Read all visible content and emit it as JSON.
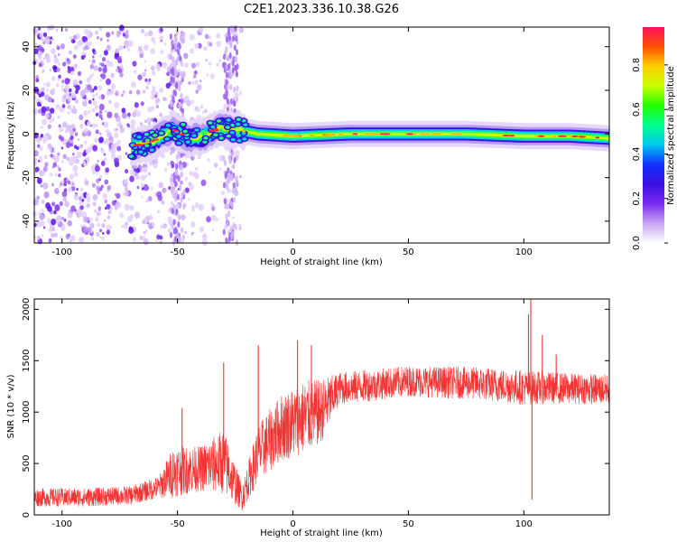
{
  "title": "C2E1.2023.336.10.38.G26",
  "chart_data": [
    {
      "type": "heatmap",
      "title": "C2E1.2023.336.10.38.G26",
      "xlabel": "Height of straight line (km)",
      "ylabel": "Frequency (Hz)",
      "xlim": [
        -112,
        137
      ],
      "ylim": [
        -50,
        49
      ],
      "x_ticks": [
        "-100",
        "-50",
        "0",
        "50",
        "100"
      ],
      "x_tick_values": [
        -100,
        -50,
        0,
        50,
        100
      ],
      "y_ticks": [
        "-40",
        "-20",
        "0",
        "20",
        "40"
      ],
      "y_tick_values": [
        -40,
        -20,
        0,
        20,
        40
      ],
      "colorbar": {
        "label": "Normalized spectral amplitude",
        "range": [
          0,
          0.97
        ],
        "ticks": [
          "0.0",
          "0.2",
          "0.4",
          "0.6",
          "0.8"
        ],
        "tick_values": [
          0.0,
          0.2,
          0.4,
          0.6,
          0.8
        ],
        "colors": [
          "#ffffff",
          "#c9a6f4",
          "#7a2cf0",
          "#3a10e0",
          "#1030ff",
          "#00c8f0",
          "#00ff90",
          "#20ff00",
          "#c8ff00",
          "#ffd000",
          "#ff5000",
          "#ff1060"
        ]
      },
      "signal_track": [
        {
          "x": -70,
          "y": -6
        },
        {
          "x": -60,
          "y": -3
        },
        {
          "x": -52,
          "y": 2
        },
        {
          "x": -45,
          "y": -2
        },
        {
          "x": -38,
          "y": -1
        },
        {
          "x": -32,
          "y": 3
        },
        {
          "x": -25,
          "y": 2
        },
        {
          "x": -15,
          "y": 0
        },
        {
          "x": 0,
          "y": -1
        },
        {
          "x": 25,
          "y": 0
        },
        {
          "x": 50,
          "y": 0
        },
        {
          "x": 75,
          "y": 0
        },
        {
          "x": 100,
          "y": -1
        },
        {
          "x": 120,
          "y": -1
        },
        {
          "x": 137,
          "y": -2
        }
      ],
      "noise_region_x": [
        -112,
        -22
      ]
    },
    {
      "type": "line",
      "xlabel": "Height of straight line (km)",
      "ylabel": "SNR (10 * v/v)",
      "xlim": [
        -112,
        137
      ],
      "ylim": [
        0,
        2100
      ],
      "x_ticks": [
        "-100",
        "-50",
        "0",
        "50",
        "100"
      ],
      "x_tick_values": [
        -100,
        -50,
        0,
        50,
        100
      ],
      "y_ticks": [
        "0",
        "500",
        "1000",
        "1500",
        "2000"
      ],
      "y_tick_values": [
        0,
        500,
        1000,
        1500,
        2000
      ],
      "color": "#f03434",
      "envelope": [
        {
          "x": -112,
          "mean": 170,
          "spread": 90
        },
        {
          "x": -90,
          "mean": 170,
          "spread": 90
        },
        {
          "x": -70,
          "mean": 190,
          "spread": 90
        },
        {
          "x": -58,
          "mean": 270,
          "spread": 110
        },
        {
          "x": -52,
          "mean": 420,
          "spread": 250
        },
        {
          "x": -40,
          "mean": 450,
          "spread": 220
        },
        {
          "x": -30,
          "mean": 520,
          "spread": 320
        },
        {
          "x": -22,
          "mean": 170,
          "spread": 130
        },
        {
          "x": -15,
          "mean": 600,
          "spread": 280
        },
        {
          "x": -5,
          "mean": 850,
          "spread": 330
        },
        {
          "x": 5,
          "mean": 950,
          "spread": 360
        },
        {
          "x": 12,
          "mean": 1000,
          "spread": 320
        },
        {
          "x": 20,
          "mean": 1230,
          "spread": 160
        },
        {
          "x": 50,
          "mean": 1300,
          "spread": 150
        },
        {
          "x": 80,
          "mean": 1280,
          "spread": 160
        },
        {
          "x": 100,
          "mean": 1240,
          "spread": 170
        },
        {
          "x": 120,
          "mean": 1230,
          "spread": 150
        },
        {
          "x": 137,
          "mean": 1220,
          "spread": 150
        }
      ],
      "spikes": [
        {
          "x": -48,
          "y": 1040
        },
        {
          "x": -30,
          "y": 1480
        },
        {
          "x": -15,
          "y": 1650
        },
        {
          "x": 2,
          "y": 1700
        },
        {
          "x": 8,
          "y": 1650
        },
        {
          "x": 102,
          "y": 1950
        },
        {
          "x": 103,
          "y": 2100
        },
        {
          "x": 103.5,
          "y": 150
        },
        {
          "x": 108,
          "y": 1750
        },
        {
          "x": 114,
          "y": 1560
        }
      ]
    }
  ]
}
